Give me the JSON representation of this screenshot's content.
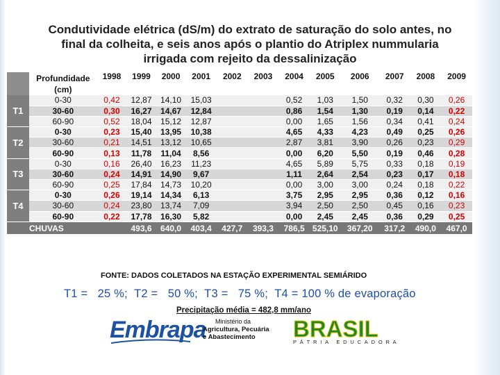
{
  "title_lines": [
    "Condutividade elétrica (dS/m) do extrato de saturação do solo antes, no",
    "final da colheita, e seis anos após o plantio do Atriplex nummularia",
    "irrigada com rejeito da dessalinização"
  ],
  "table": {
    "header_depth_line1": "Profundidade",
    "header_depth_line2": "(cm)",
    "years": [
      "1998",
      "1999",
      "2000",
      "2001",
      "2002",
      "2003",
      "2004",
      "2005",
      "2006",
      "2007",
      "2008",
      "2009"
    ],
    "treatments": [
      {
        "label": "T1",
        "rows": [
          {
            "depth": "0-30",
            "bold": false,
            "values": [
              "0,42",
              "12,87",
              "14,10",
              "15,03",
              "",
              "",
              "0,52",
              "1,03",
              "1,50",
              "0,32",
              "0,30",
              "0,26"
            ]
          },
          {
            "depth": "30-60",
            "bold": true,
            "values": [
              "0,30",
              "16,27",
              "14,67",
              "12,84",
              "",
              "",
              "0,86",
              "1,54",
              "1,30",
              "0,19",
              "0,14",
              "0,22"
            ]
          },
          {
            "depth": "60-90",
            "bold": false,
            "values": [
              "0,52",
              "18,04",
              "15,12",
              "12,87",
              "",
              "",
              "0,00",
              "1,65",
              "1,56",
              "0,34",
              "0,41",
              "0,24"
            ]
          }
        ]
      },
      {
        "label": "T2",
        "rows": [
          {
            "depth": "0-30",
            "bold": true,
            "values": [
              "0,23",
              "15,40",
              "13,95",
              "10,38",
              "",
              "",
              "4,65",
              "4,33",
              "4,23",
              "0,49",
              "0,25",
              "0,26"
            ]
          },
          {
            "depth": "30-60",
            "bold": false,
            "values": [
              "0,21",
              "14,51",
              "13,12",
              "10,65",
              "",
              "",
              "2,87",
              "3,81",
              "3,90",
              "0,26",
              "0,23",
              "0,29"
            ]
          },
          {
            "depth": "60-90",
            "bold": true,
            "values": [
              "0,13",
              "11,78",
              "11,04",
              "8,56",
              "",
              "",
              "0,00",
              "6,20",
              "5,50",
              "0,19",
              "0,46",
              "0,28"
            ]
          }
        ]
      },
      {
        "label": "T3",
        "rows": [
          {
            "depth": "0-30",
            "bold": false,
            "values": [
              "0,16",
              "26,40",
              "16,23",
              "11,23",
              "",
              "",
              "4,65",
              "5,89",
              "5,75",
              "0,33",
              "0,18",
              "0,19"
            ]
          },
          {
            "depth": "30-60",
            "bold": true,
            "values": [
              "0,24",
              "14,91",
              "14,90",
              "9,67",
              "",
              "",
              "1,11",
              "2,64",
              "2,54",
              "0,23",
              "0,17",
              "0,18"
            ]
          },
          {
            "depth": "60-90",
            "bold": false,
            "values": [
              "0,25",
              "17,84",
              "14,73",
              "10,20",
              "",
              "",
              "0,00",
              "3,00",
              "3,00",
              "0,24",
              "0,18",
              "0,22"
            ]
          }
        ]
      },
      {
        "label": "T4",
        "rows": [
          {
            "depth": "0-30",
            "bold": true,
            "values": [
              "0,26",
              "19,14",
              "14,34",
              "6,13",
              "",
              "",
              "3,75",
              "2,95",
              "2,95",
              "0,36",
              "0,12",
              "0,16"
            ]
          },
          {
            "depth": "30-60",
            "bold": false,
            "values": [
              "0,24",
              "23,80",
              "13,74",
              "7,09",
              "",
              "",
              "3,94",
              "2,50",
              "2,50",
              "0,45",
              "0,16",
              "0,23"
            ]
          },
          {
            "depth": "60-90",
            "bold": true,
            "values": [
              "0,22",
              "17,78",
              "16,30",
              "5,82",
              "",
              "",
              "0,00",
              "2,45",
              "2,45",
              "0,36",
              "0,29",
              "0,25"
            ]
          }
        ]
      }
    ],
    "rain_label": "CHUVAS",
    "rain_values": [
      "",
      "493,6",
      "640,0",
      "403,4",
      "427,7",
      "393,3",
      "786,5",
      "525,10",
      "367,20",
      "317,2",
      "490,0",
      "467,0"
    ]
  },
  "fonte": "FONTE: DADOS COLETADOS NA ESTAÇÃO EXPERIMENTAL SEMIÁRIDO",
  "legend": "T1 =   25 %;  T2 =   50 %;  T3 =   75 %;  T4 = 100 % de evaporação",
  "precip": "Precipitação média = 482,8 mm/ano",
  "logos": {
    "embrapa": "Embrapa",
    "ministerio_line1": "Ministério da",
    "ministerio_line2": "Agricultura, Pecuária",
    "ministerio_line3": "e Abastecimento",
    "brasil": "BRASIL",
    "brasil_tagline": "PÁTRIA EDUCADORA"
  },
  "colors": {
    "highlight_red": "#d40000",
    "legend_blue": "#1f4ea8",
    "header_gray": "#7f7f7f"
  }
}
